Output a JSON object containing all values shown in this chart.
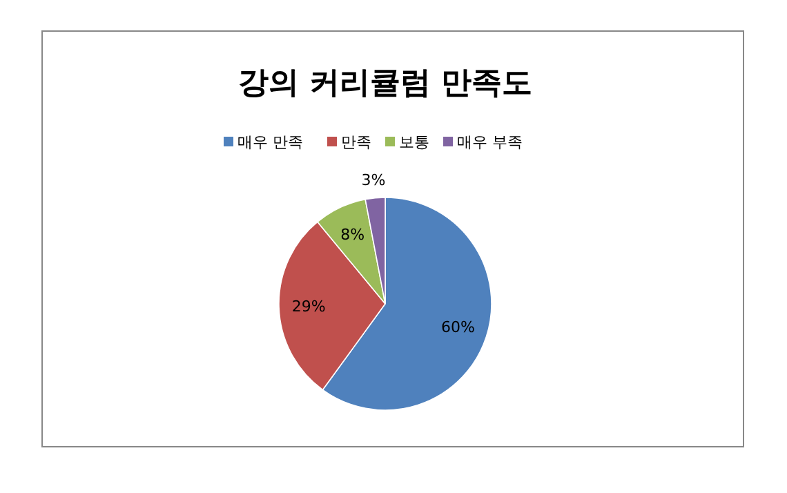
{
  "chart_data": {
    "type": "pie",
    "title": "강의 커리큘럼 만족도",
    "categories": [
      "매우 만족",
      "만족",
      "보통",
      "매우 부족"
    ],
    "values": [
      60,
      29,
      8,
      3
    ],
    "colors": [
      "#4f81bd",
      "#c0504d",
      "#9bbb59",
      "#8064a2"
    ],
    "value_labels": [
      "60%",
      "29%",
      "8%",
      "3%"
    ],
    "legend": "top"
  }
}
